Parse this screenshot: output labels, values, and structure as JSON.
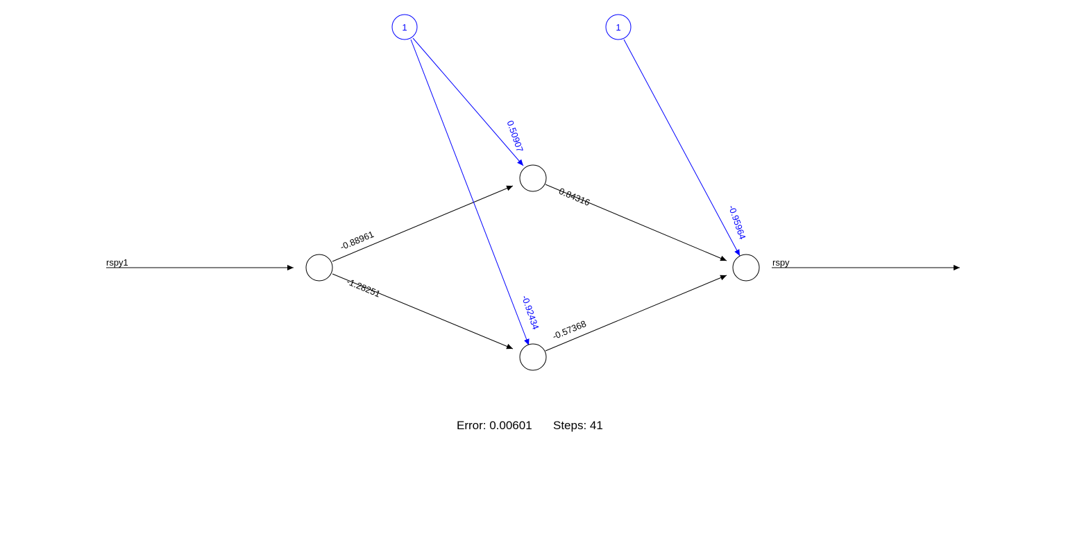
{
  "colors": {
    "main": "#000000",
    "bias": "#0000ff",
    "background": "#ffffff"
  },
  "diagram": {
    "type": "neural-network",
    "input_label": "rspy1",
    "output_label": "rspy",
    "bias_label_1": "1",
    "bias_label_2": "1",
    "weights": {
      "input_to_h1": "-0.88961",
      "input_to_h2": "-1.28251",
      "bias1_to_h1": "0.50907",
      "bias1_to_h2": "-0.92434",
      "h1_to_output": "0.84316",
      "h2_to_output": "-0.57368",
      "bias2_to_output": "-0.95964"
    }
  },
  "footer": {
    "error_label": "Error: 0.00601",
    "steps_label": "Steps: 41"
  }
}
